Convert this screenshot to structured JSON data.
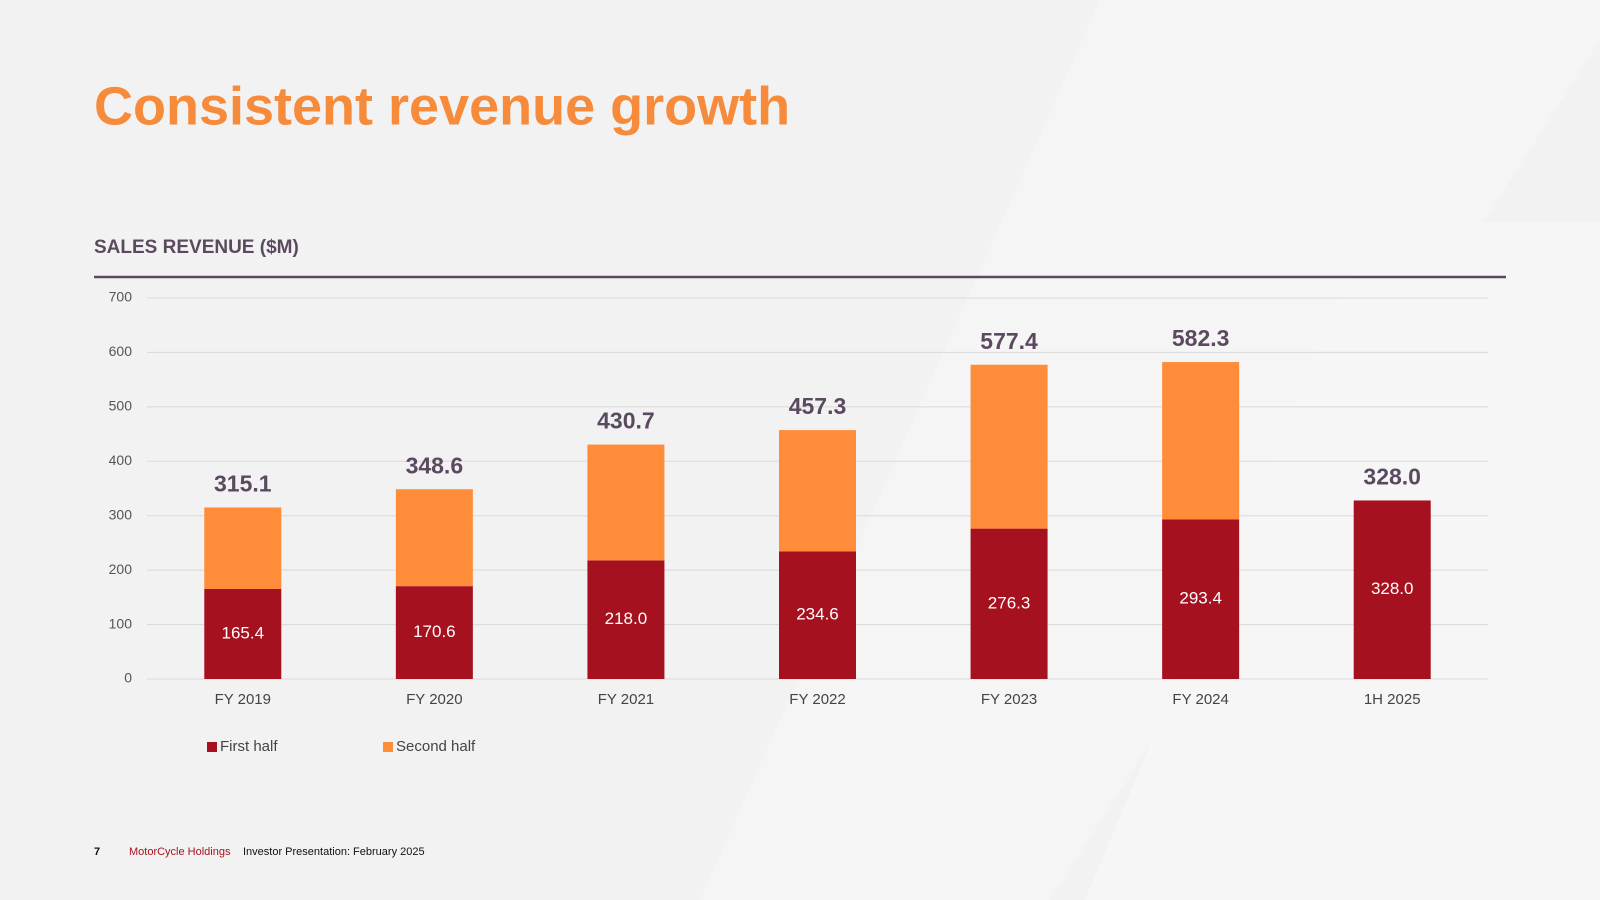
{
  "header": {
    "title": "Consistent revenue growth"
  },
  "chart_data": {
    "type": "stacked-bar",
    "title": "SALES REVENUE ($M)",
    "categories": [
      "FY 2019",
      "FY 2020",
      "FY 2021",
      "FY 2022",
      "FY 2023",
      "FY 2024",
      "1H 2025"
    ],
    "series": [
      {
        "name": "First half",
        "color": "#a6111f",
        "values": [
          165.4,
          170.6,
          218.0,
          234.6,
          276.3,
          293.4,
          328.0
        ],
        "value_labels": [
          "165.4",
          "170.6",
          "218.0",
          "234.6",
          "276.3",
          "293.4",
          "328.0"
        ]
      },
      {
        "name": "Second half",
        "color": "#ff8c38",
        "values": [
          149.7,
          178.0,
          212.7,
          222.7,
          301.1,
          288.9,
          null
        ]
      }
    ],
    "totals": {
      "values": [
        315.1,
        348.6,
        430.7,
        457.3,
        577.4,
        582.3,
        328.0
      ],
      "value_labels": [
        "315.1",
        "348.6",
        "430.7",
        "457.3",
        "577.4",
        "582.3",
        "328.0"
      ]
    },
    "ylim": [
      0,
      700
    ],
    "yticks": [
      0,
      100,
      200,
      300,
      400,
      500,
      600,
      700
    ],
    "grid": true,
    "legend": "bottom-left"
  },
  "footer": {
    "page": "7",
    "company": "MotorCycle Holdings",
    "text": "Investor Presentation: February 2025"
  }
}
